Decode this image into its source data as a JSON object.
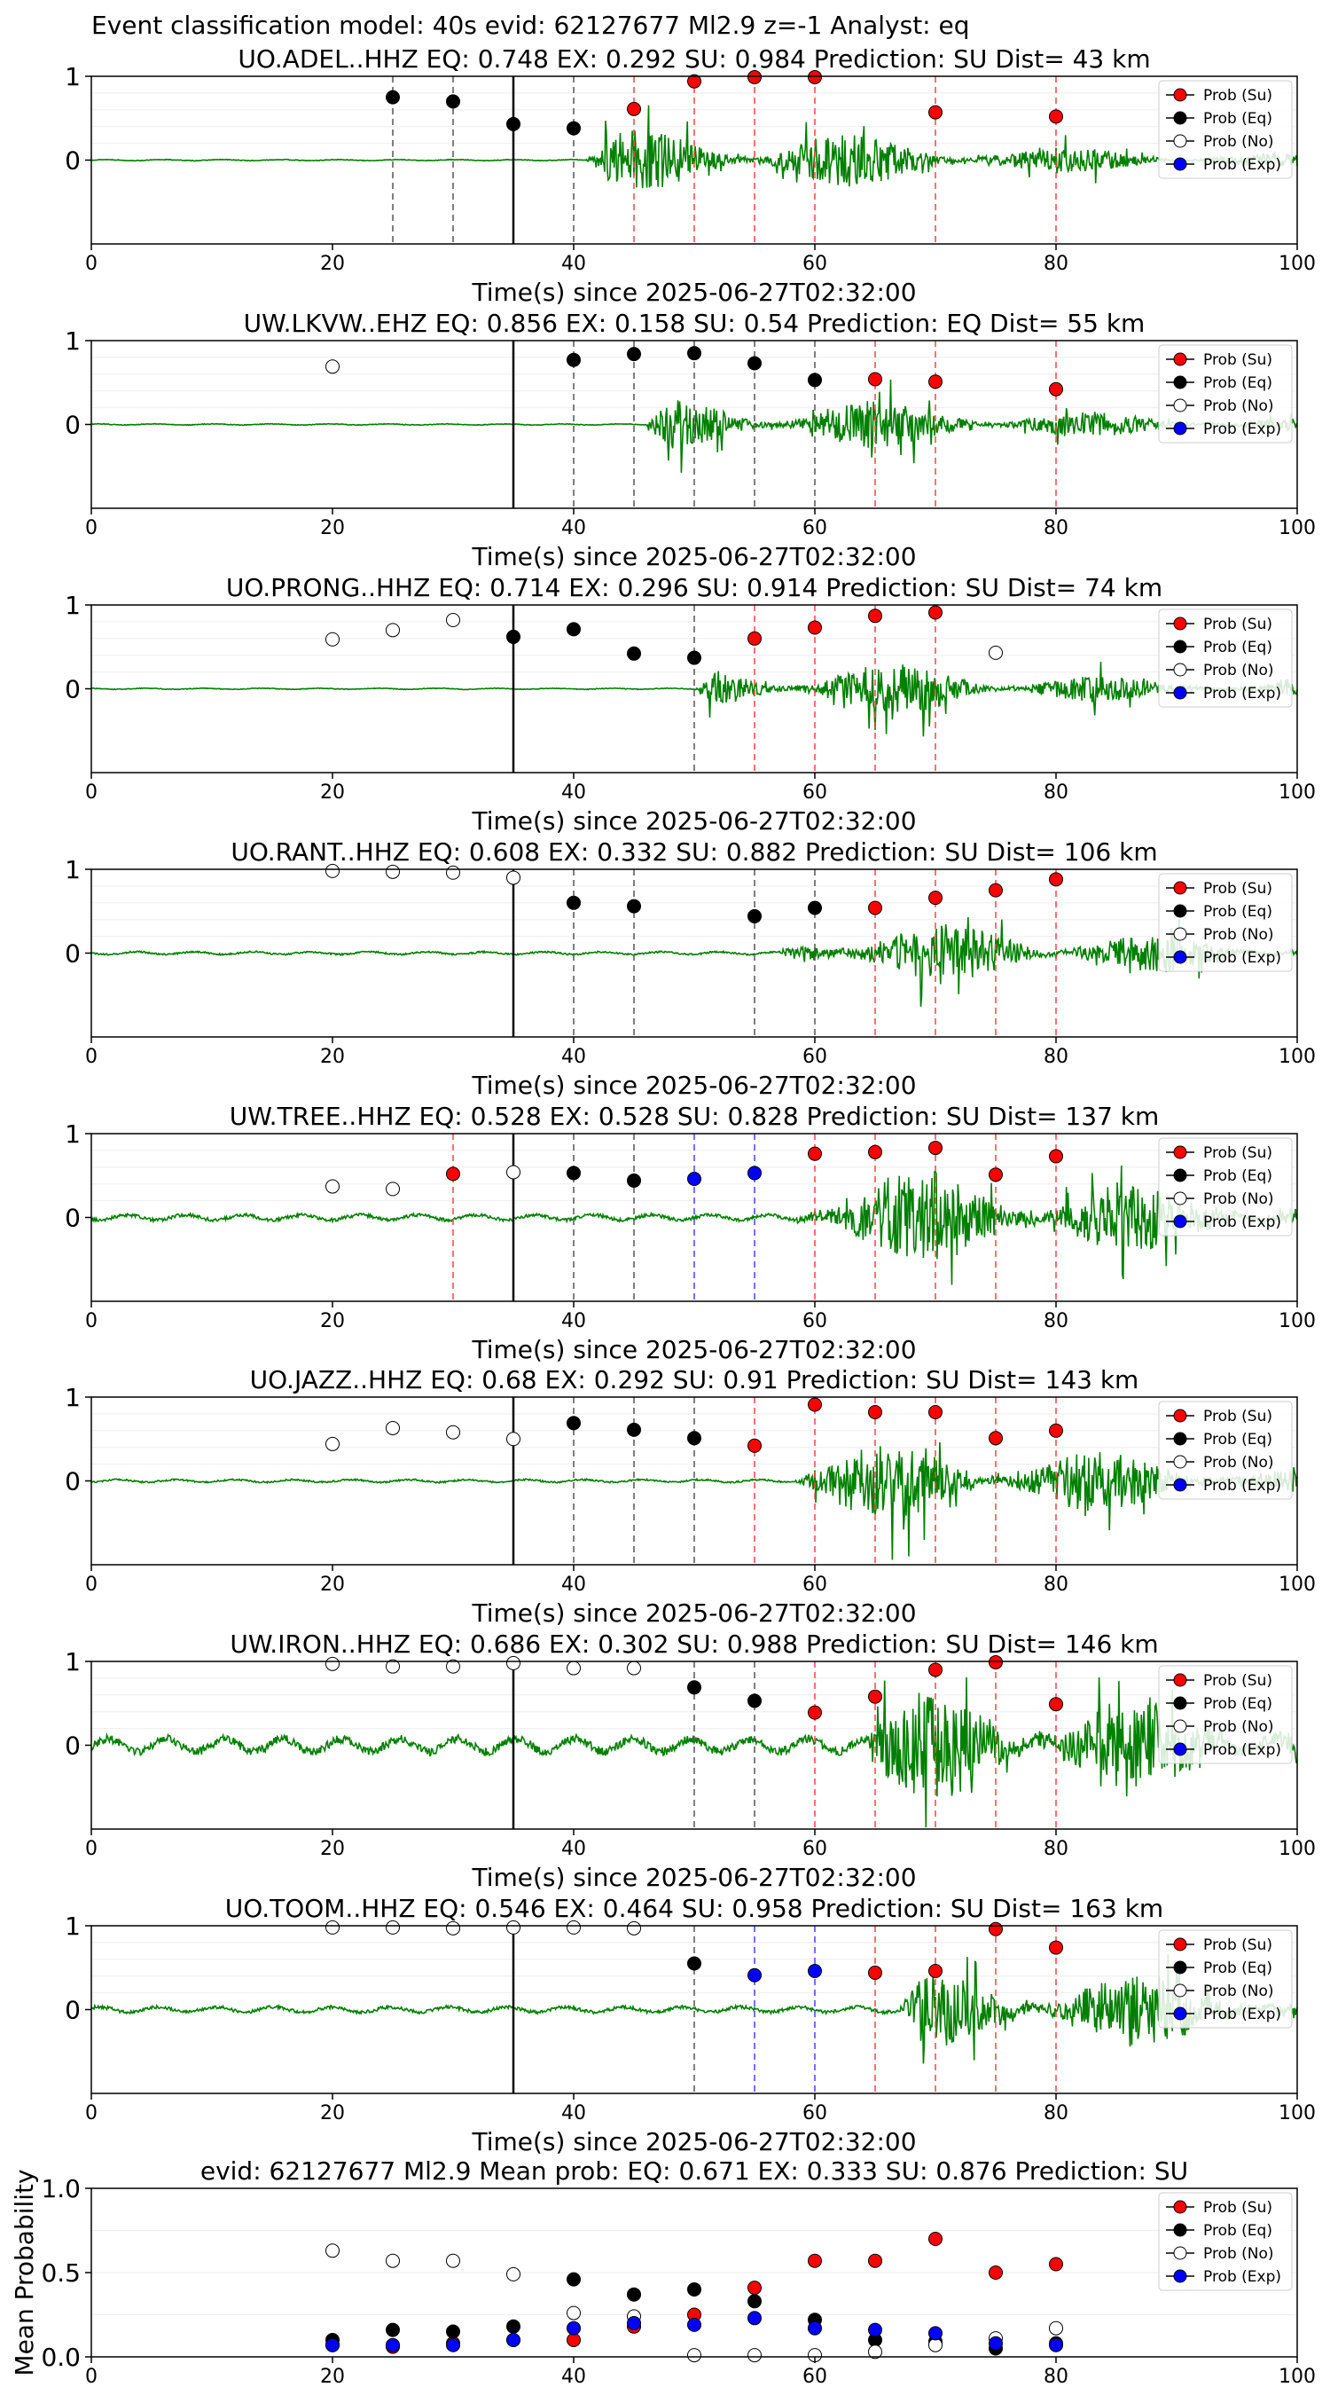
{
  "suptitle": "Event classification model: 40s evid: 62127677 Ml2.9 z=-1 Analyst: eq",
  "colors": {
    "su": "#ff0000",
    "eq": "#000000",
    "no": "#ffffff",
    "exp": "#0000ff",
    "trace": "#008000"
  },
  "legend": [
    "Prob (Su)",
    "Prob (Eq)",
    "Prob (No)",
    "Prob (Exp)"
  ],
  "chart_data": [
    {
      "type": "scatter",
      "title": "UO.ADEL..HHZ   EQ: 0.748  EX: 0.292  SU: 0.984   Prediction: SU    Dist= 43 km",
      "xlabel": "Time(s) since 2025-06-27T02:32:00",
      "ylabel": "",
      "xlim": [
        0,
        100
      ],
      "ylim": [
        -1,
        1
      ],
      "xticks": [
        0,
        20,
        40,
        60,
        80,
        100
      ],
      "yticks": [
        0,
        1
      ],
      "p_arrival": 35,
      "signal_onset": 41,
      "noise_amp": 0.004,
      "signal_amp": 0.35,
      "vlines": {
        "eq": [
          25,
          30,
          40
        ],
        "su": [
          45,
          50,
          55,
          60,
          70,
          80
        ],
        "exp": []
      },
      "series": [
        {
          "key": "su",
          "x": [
            45,
            50,
            55,
            60,
            70,
            80
          ],
          "y": [
            0.61,
            0.94,
            0.99,
            0.99,
            0.57,
            0.52
          ]
        },
        {
          "key": "eq",
          "x": [
            25,
            30,
            35,
            40
          ],
          "y": [
            0.75,
            0.7,
            0.43,
            0.38
          ]
        },
        {
          "key": "no",
          "x": [],
          "y": []
        },
        {
          "key": "exp",
          "x": [],
          "y": []
        }
      ]
    },
    {
      "type": "scatter",
      "title": "UW.LKVW..EHZ   EQ: 0.856  EX: 0.158  SU: 0.54   Prediction: EQ    Dist= 55 km",
      "xlabel": "Time(s) since 2025-06-27T02:32:00",
      "ylabel": "",
      "xlim": [
        0,
        100
      ],
      "ylim": [
        -1,
        1
      ],
      "xticks": [
        0,
        20,
        40,
        60,
        80,
        100
      ],
      "yticks": [
        0,
        1
      ],
      "p_arrival": 35,
      "signal_onset": 46,
      "noise_amp": 0.004,
      "signal_amp": 0.3,
      "vlines": {
        "eq": [
          40,
          45,
          50,
          55,
          60
        ],
        "su": [
          65,
          70,
          80
        ],
        "exp": []
      },
      "series": [
        {
          "key": "su",
          "x": [
            65,
            70,
            80
          ],
          "y": [
            0.54,
            0.51,
            0.42
          ]
        },
        {
          "key": "eq",
          "x": [
            40,
            45,
            50,
            55,
            60
          ],
          "y": [
            0.77,
            0.84,
            0.85,
            0.73,
            0.53
          ]
        },
        {
          "key": "no",
          "x": [
            20
          ],
          "y": [
            0.69
          ]
        },
        {
          "key": "exp",
          "x": [],
          "y": []
        }
      ]
    },
    {
      "type": "scatter",
      "title": "UO.PRONG..HHZ   EQ: 0.714  EX: 0.296  SU: 0.914   Prediction: SU    Dist= 74 km",
      "xlabel": "Time(s) since 2025-06-27T02:32:00",
      "ylabel": "",
      "xlim": [
        0,
        100
      ],
      "ylim": [
        -1,
        1
      ],
      "xticks": [
        0,
        20,
        40,
        60,
        80,
        100
      ],
      "yticks": [
        0,
        1
      ],
      "p_arrival": 35,
      "signal_onset": 50,
      "noise_amp": 0.004,
      "signal_amp": 0.3,
      "vlines": {
        "eq": [
          50
        ],
        "su": [
          55,
          60,
          65,
          70
        ],
        "exp": []
      },
      "series": [
        {
          "key": "su",
          "x": [
            55,
            60,
            65,
            70
          ],
          "y": [
            0.6,
            0.73,
            0.87,
            0.91
          ]
        },
        {
          "key": "eq",
          "x": [
            35,
            40,
            45,
            50
          ],
          "y": [
            0.62,
            0.71,
            0.42,
            0.37
          ]
        },
        {
          "key": "no",
          "x": [
            20,
            25,
            30,
            75
          ],
          "y": [
            0.59,
            0.7,
            0.82,
            0.43
          ]
        },
        {
          "key": "exp",
          "x": [],
          "y": []
        }
      ]
    },
    {
      "type": "scatter",
      "title": "UO.RANT..HHZ   EQ: 0.608  EX: 0.332  SU: 0.882   Prediction: SU    Dist= 106 km",
      "xlabel": "Time(s) since 2025-06-27T02:32:00",
      "ylabel": "",
      "xlim": [
        0,
        100
      ],
      "ylim": [
        -1,
        1
      ],
      "xticks": [
        0,
        20,
        40,
        60,
        80,
        100
      ],
      "yticks": [
        0,
        1
      ],
      "p_arrival": 35,
      "signal_onset": 57,
      "noise_amp": 0.01,
      "signal_amp": 0.35,
      "vlines": {
        "eq": [
          40,
          45,
          55,
          60
        ],
        "su": [
          65,
          70,
          75,
          80
        ],
        "exp": []
      },
      "series": [
        {
          "key": "su",
          "x": [
            65,
            70,
            75,
            80
          ],
          "y": [
            0.54,
            0.66,
            0.75,
            0.88
          ]
        },
        {
          "key": "eq",
          "x": [
            40,
            45,
            55,
            60
          ],
          "y": [
            0.6,
            0.56,
            0.44,
            0.54
          ]
        },
        {
          "key": "no",
          "x": [
            20,
            25,
            30,
            35
          ],
          "y": [
            0.98,
            0.97,
            0.96,
            0.9
          ]
        },
        {
          "key": "exp",
          "x": [],
          "y": []
        }
      ]
    },
    {
      "type": "scatter",
      "title": "UW.TREE..HHZ   EQ: 0.528  EX: 0.528  SU: 0.828   Prediction: SU    Dist= 137 km",
      "xlabel": "Time(s) since 2025-06-27T02:32:00",
      "ylabel": "",
      "xlim": [
        0,
        100
      ],
      "ylim": [
        -1,
        1
      ],
      "xticks": [
        0,
        20,
        40,
        60,
        80,
        100
      ],
      "yticks": [
        0,
        1
      ],
      "p_arrival": 35,
      "signal_onset": 58,
      "noise_amp": 0.02,
      "signal_amp": 0.55,
      "vlines": {
        "eq": [
          40,
          45
        ],
        "su": [
          30,
          60,
          65,
          70,
          75,
          80
        ],
        "exp": [
          50,
          55
        ]
      },
      "series": [
        {
          "key": "su",
          "x": [
            30,
            60,
            65,
            70,
            75,
            80
          ],
          "y": [
            0.52,
            0.76,
            0.78,
            0.83,
            0.51,
            0.73
          ]
        },
        {
          "key": "eq",
          "x": [
            40,
            45
          ],
          "y": [
            0.53,
            0.44
          ]
        },
        {
          "key": "no",
          "x": [
            20,
            25,
            35
          ],
          "y": [
            0.37,
            0.34,
            0.54
          ]
        },
        {
          "key": "exp",
          "x": [
            50,
            55
          ],
          "y": [
            0.46,
            0.53
          ]
        }
      ]
    },
    {
      "type": "scatter",
      "title": "UO.JAZZ..HHZ   EQ: 0.68  EX: 0.292  SU: 0.91   Prediction: SU    Dist= 143 km",
      "xlabel": "Time(s) since 2025-06-27T02:32:00",
      "ylabel": "",
      "xlim": [
        0,
        100
      ],
      "ylim": [
        -1,
        1
      ],
      "xticks": [
        0,
        20,
        40,
        60,
        80,
        100
      ],
      "yticks": [
        0,
        1
      ],
      "p_arrival": 35,
      "signal_onset": 58,
      "noise_amp": 0.01,
      "signal_amp": 0.45,
      "vlines": {
        "eq": [
          40,
          45,
          50
        ],
        "su": [
          55,
          60,
          65,
          70,
          75,
          80
        ],
        "exp": []
      },
      "series": [
        {
          "key": "su",
          "x": [
            55,
            60,
            65,
            70,
            75,
            80
          ],
          "y": [
            0.42,
            0.91,
            0.82,
            0.82,
            0.51,
            0.6
          ]
        },
        {
          "key": "eq",
          "x": [
            40,
            45,
            50
          ],
          "y": [
            0.69,
            0.61,
            0.51
          ]
        },
        {
          "key": "no",
          "x": [
            20,
            25,
            30,
            35
          ],
          "y": [
            0.44,
            0.63,
            0.58,
            0.5
          ]
        },
        {
          "key": "exp",
          "x": [],
          "y": []
        }
      ]
    },
    {
      "type": "scatter",
      "title": "UW.IRON..HHZ   EQ: 0.686  EX: 0.302  SU: 0.988   Prediction: SU    Dist= 146 km",
      "xlabel": "Time(s) since 2025-06-27T02:32:00",
      "ylabel": "",
      "xlim": [
        0,
        100
      ],
      "ylim": [
        -1,
        1
      ],
      "xticks": [
        0,
        20,
        40,
        60,
        80,
        100
      ],
      "yticks": [
        0,
        1
      ],
      "p_arrival": 35,
      "signal_onset": 64,
      "noise_amp": 0.05,
      "signal_amp": 0.6,
      "vlines": {
        "eq": [
          50,
          55
        ],
        "su": [
          60,
          65,
          70,
          75,
          80
        ],
        "exp": []
      },
      "series": [
        {
          "key": "su",
          "x": [
            60,
            65,
            70,
            75,
            80
          ],
          "y": [
            0.39,
            0.58,
            0.9,
            0.99,
            0.49
          ]
        },
        {
          "key": "eq",
          "x": [
            50,
            55
          ],
          "y": [
            0.69,
            0.53
          ]
        },
        {
          "key": "no",
          "x": [
            20,
            25,
            30,
            35,
            40,
            45
          ],
          "y": [
            0.97,
            0.94,
            0.94,
            0.98,
            0.92,
            0.92
          ]
        },
        {
          "key": "exp",
          "x": [],
          "y": []
        }
      ]
    },
    {
      "type": "scatter",
      "title": "UO.TOOM..HHZ   EQ: 0.546  EX: 0.464  SU: 0.958   Prediction: SU    Dist= 163 km",
      "xlabel": "Time(s) since 2025-06-27T02:32:00",
      "ylabel": "",
      "xlim": [
        0,
        100
      ],
      "ylim": [
        -1,
        1
      ],
      "xticks": [
        0,
        20,
        40,
        60,
        80,
        100
      ],
      "yticks": [
        0,
        1
      ],
      "p_arrival": 35,
      "signal_onset": 67,
      "noise_amp": 0.02,
      "signal_amp": 0.45,
      "vlines": {
        "eq": [
          50
        ],
        "su": [
          65,
          70,
          75,
          80
        ],
        "exp": [
          55,
          60
        ]
      },
      "series": [
        {
          "key": "su",
          "x": [
            65,
            70,
            75,
            80
          ],
          "y": [
            0.44,
            0.46,
            0.96,
            0.74
          ]
        },
        {
          "key": "eq",
          "x": [
            50
          ],
          "y": [
            0.55
          ]
        },
        {
          "key": "no",
          "x": [
            20,
            25,
            30,
            35,
            40,
            45
          ],
          "y": [
            0.98,
            0.98,
            0.97,
            0.98,
            0.98,
            0.97
          ]
        },
        {
          "key": "exp",
          "x": [
            55,
            60
          ],
          "y": [
            0.41,
            0.46
          ]
        }
      ]
    },
    {
      "type": "scatter",
      "title": "evid: 62127677  Ml2.9   Mean prob:   EQ: 0.671  EX: 0.333  SU: 0.876   Prediction: SU",
      "xlabel": "",
      "ylabel": "Mean Probability",
      "xlim": [
        0,
        100
      ],
      "ylim": [
        0,
        1
      ],
      "xticks": [
        0,
        20,
        40,
        60,
        80,
        100
      ],
      "yticks": [
        0.0,
        0.5,
        1.0
      ],
      "series": [
        {
          "key": "su",
          "x": [
            20,
            25,
            30,
            35,
            40,
            45,
            50,
            55,
            60,
            65,
            70,
            75,
            80
          ],
          "y": [
            0.07,
            0.06,
            0.08,
            0.1,
            0.1,
            0.18,
            0.25,
            0.41,
            0.57,
            0.57,
            0.7,
            0.5,
            0.55
          ]
        },
        {
          "key": "eq",
          "x": [
            20,
            25,
            30,
            35,
            40,
            45,
            50,
            55,
            60,
            65,
            70,
            75,
            80
          ],
          "y": [
            0.1,
            0.16,
            0.15,
            0.18,
            0.46,
            0.37,
            0.4,
            0.33,
            0.22,
            0.1,
            0.09,
            0.05,
            0.08
          ]
        },
        {
          "key": "no",
          "x": [
            20,
            25,
            30,
            35,
            40,
            45,
            50,
            55,
            60,
            65,
            70,
            75,
            80
          ],
          "y": [
            0.63,
            0.57,
            0.57,
            0.49,
            0.26,
            0.24,
            0.01,
            0.01,
            0.01,
            0.03,
            0.07,
            0.11,
            0.17
          ]
        },
        {
          "key": "exp",
          "x": [
            20,
            25,
            30,
            35,
            40,
            45,
            50,
            55,
            60,
            65,
            70,
            75,
            80
          ],
          "y": [
            0.07,
            0.07,
            0.07,
            0.1,
            0.17,
            0.2,
            0.19,
            0.23,
            0.17,
            0.16,
            0.14,
            0.08,
            0.07
          ]
        }
      ]
    }
  ]
}
